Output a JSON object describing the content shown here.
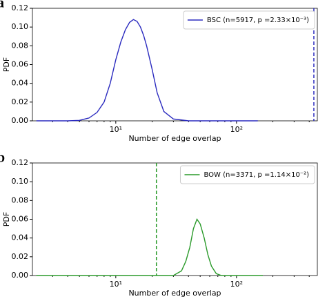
{
  "chart_data": [
    {
      "type": "line",
      "panel_label": "a",
      "xlabel": "Number of edge overlap",
      "ylabel": "PDF",
      "xscale": "log",
      "xlim": [
        2.04,
        467
      ],
      "xticks": [
        {
          "value": 10,
          "label": "10¹"
        },
        {
          "value": 100,
          "label": "10²"
        }
      ],
      "xminorticks": [
        3,
        4,
        5,
        6,
        7,
        8,
        9,
        20,
        30,
        40,
        50,
        60,
        70,
        80,
        90,
        200,
        300,
        400
      ],
      "ylim": [
        0,
        0.12
      ],
      "yticks": [
        {
          "value": 0,
          "label": "0.00"
        },
        0.02,
        0.04,
        0.06,
        0.08,
        {
          "value": 0.1,
          "label": "0.10"
        },
        0.12
      ],
      "legend": "upper right",
      "vline": 437,
      "vline_style": "dashed",
      "x": [
        2.2,
        3,
        4,
        5,
        6,
        7,
        8,
        9,
        10,
        11,
        12,
        13,
        14,
        15,
        16,
        17,
        18,
        20,
        22,
        25,
        30,
        40,
        60,
        100,
        150
      ],
      "series": [
        {
          "name": "BSC (n=5917, p =2.33×10⁻³)",
          "color": "#2b2bbf",
          "values": [
            0,
            0,
            0,
            0.0005,
            0.003,
            0.009,
            0.02,
            0.04,
            0.065,
            0.084,
            0.097,
            0.105,
            0.108,
            0.106,
            0.1,
            0.091,
            0.08,
            0.055,
            0.03,
            0.01,
            0.002,
            0,
            0,
            0,
            0
          ]
        }
      ]
    },
    {
      "type": "line",
      "panel_label": "b",
      "xlabel": "Number of edge overlap",
      "ylabel": "PDF",
      "xscale": "log",
      "xlim": [
        2.04,
        467
      ],
      "xticks": [
        {
          "value": 10,
          "label": "10¹"
        },
        {
          "value": 100,
          "label": "10²"
        }
      ],
      "xminorticks": [
        3,
        4,
        5,
        6,
        7,
        8,
        9,
        20,
        30,
        40,
        50,
        60,
        70,
        80,
        90,
        200,
        300,
        400
      ],
      "ylim": [
        0,
        0.12
      ],
      "yticks": [
        {
          "value": 0,
          "label": "0.00"
        },
        0.02,
        0.04,
        0.06,
        0.08,
        {
          "value": 0.1,
          "label": "0.10"
        },
        0.12
      ],
      "legend": "upper right",
      "vline": 21.7,
      "vline_style": "dashed",
      "x": [
        2.2,
        5,
        10,
        20,
        30,
        35,
        38,
        41,
        44,
        47,
        50,
        54,
        58,
        62,
        68,
        75,
        100,
        165
      ],
      "series": [
        {
          "name": "BOW (n=3371, p =1.14×10⁻²)",
          "color": "#2a9a2a",
          "values": [
            0,
            0,
            0,
            0,
            0,
            0.005,
            0.015,
            0.03,
            0.05,
            0.06,
            0.055,
            0.04,
            0.022,
            0.01,
            0.002,
            0,
            0,
            0
          ]
        }
      ]
    }
  ]
}
